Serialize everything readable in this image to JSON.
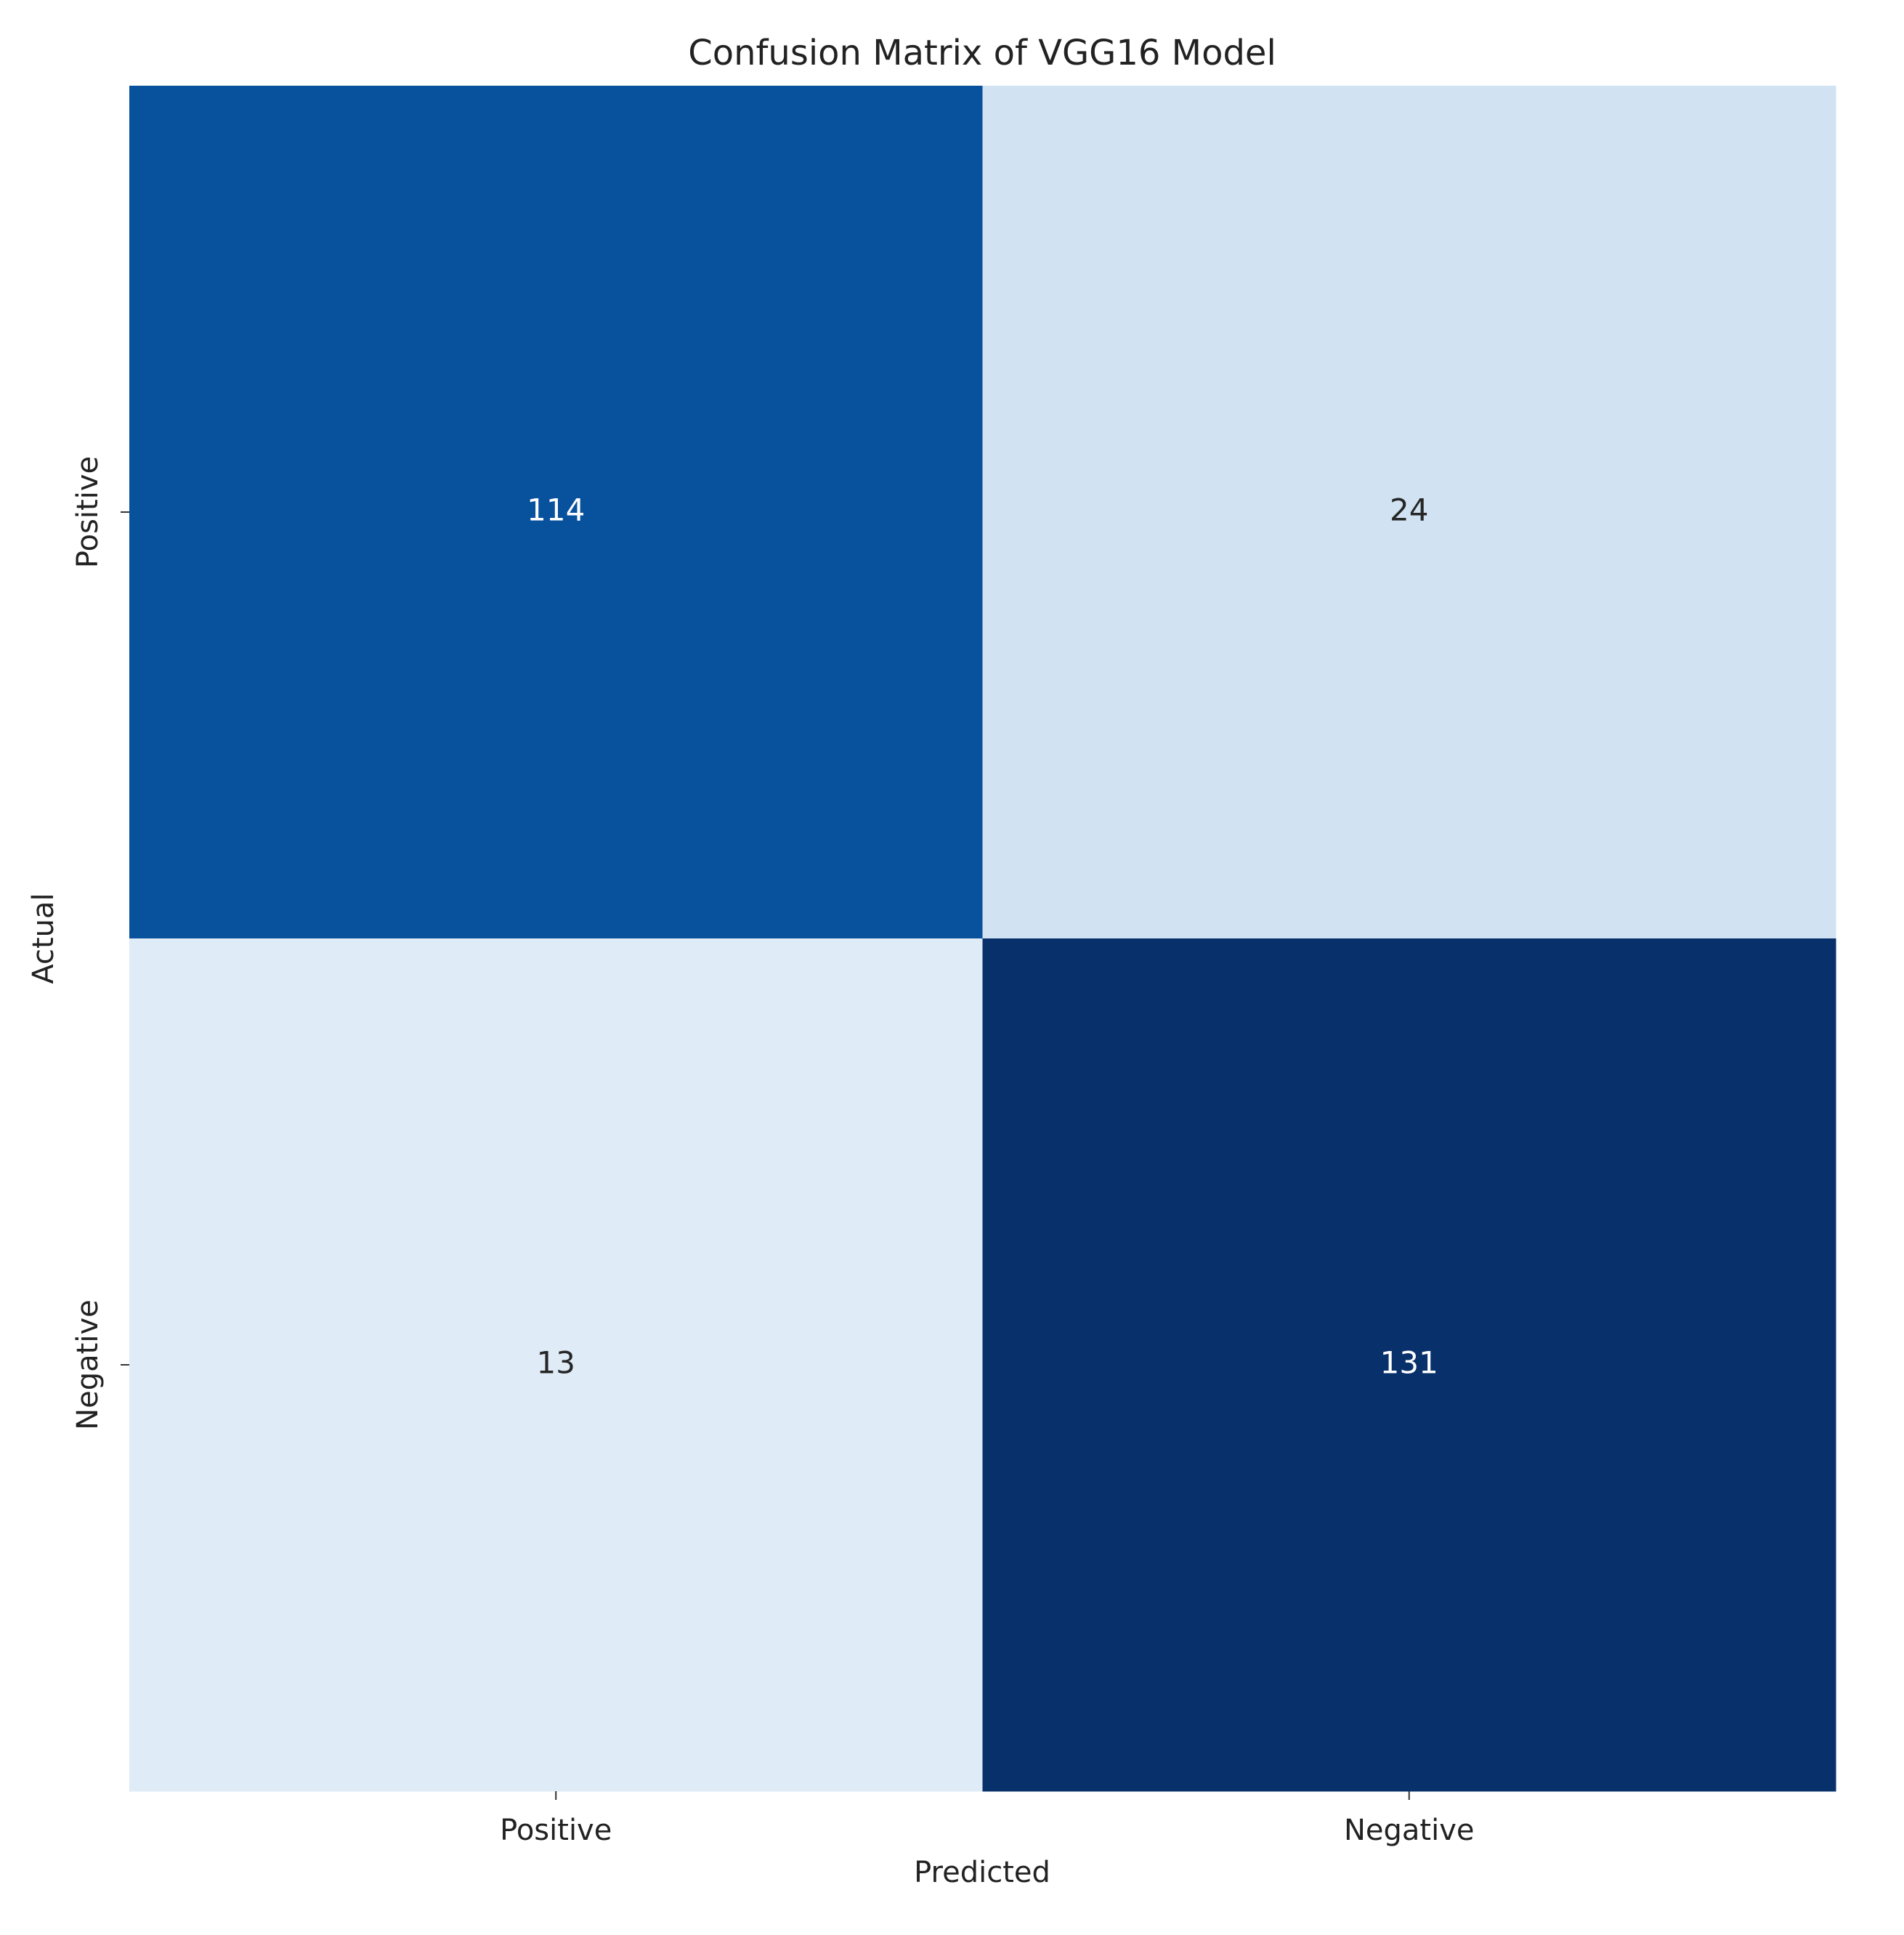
{
  "chart_data": {
    "type": "heatmap",
    "title": "Confusion Matrix of VGG16 Model",
    "x_label": "Predicted",
    "y_label": "Actual",
    "x_categories": [
      "Positive",
      "Negative"
    ],
    "y_categories": [
      "Positive",
      "Negative"
    ],
    "values": [
      [
        114,
        24
      ],
      [
        13,
        131
      ]
    ],
    "colors": [
      [
        "#08519c",
        "#d1e3f2"
      ],
      [
        "#dfebf7",
        "#08306b"
      ]
    ]
  }
}
